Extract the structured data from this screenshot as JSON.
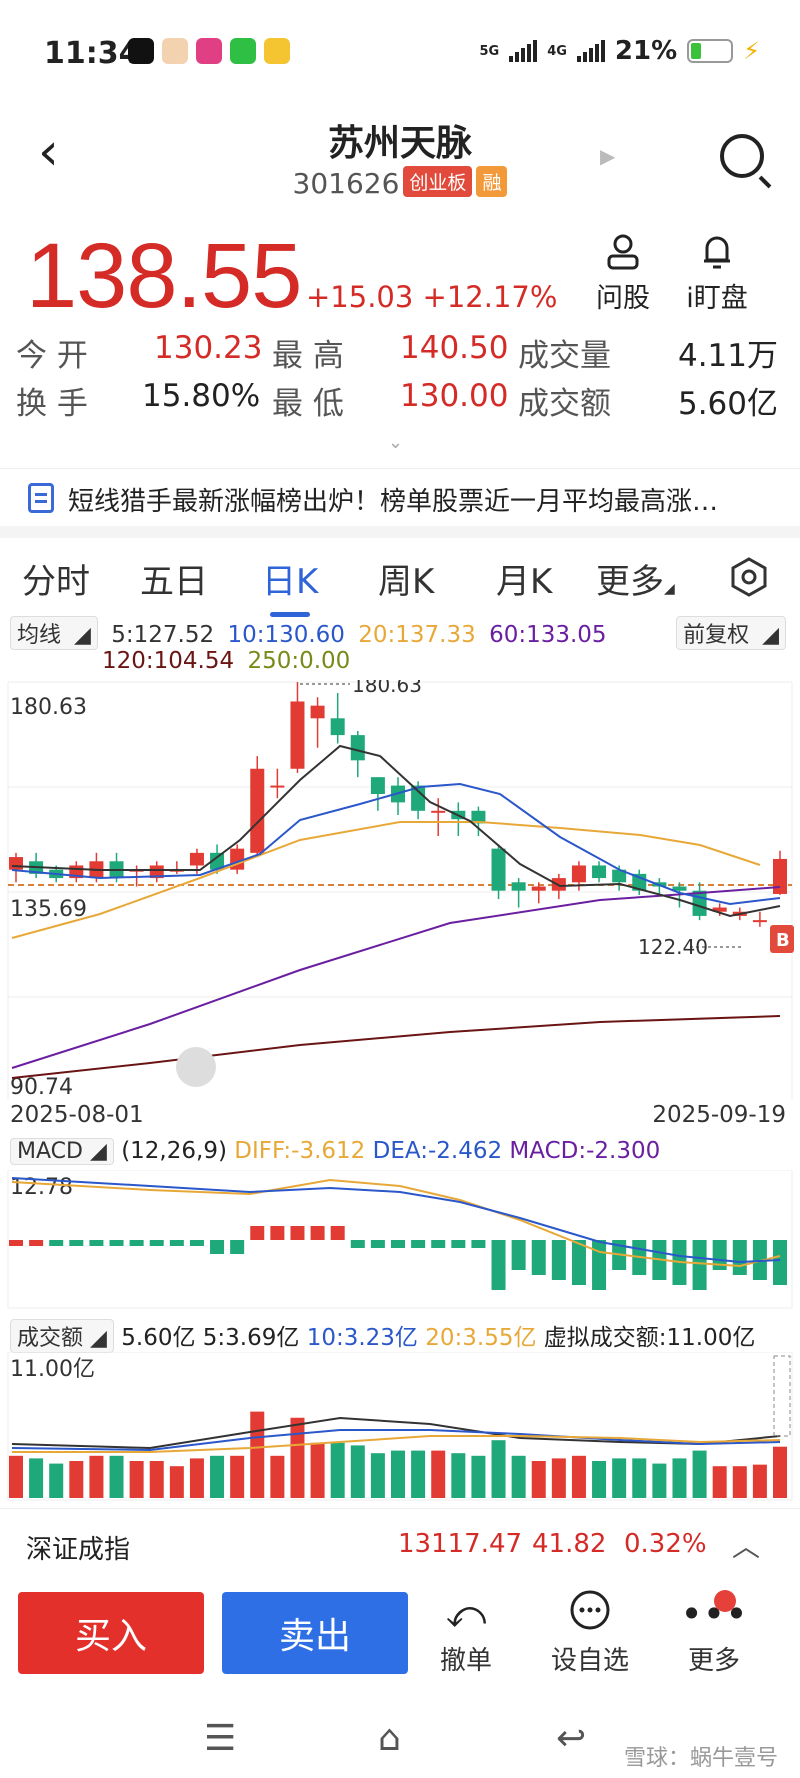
{
  "status_bar": {
    "time": "11:34",
    "signal_5g": "5G",
    "signal_4g": "4G",
    "battery": "21%"
  },
  "header": {
    "title": "苏州天脉",
    "code": "301626",
    "board_badge": "创业板",
    "margin_badge": "融"
  },
  "quote": {
    "price": "138.55",
    "change": "+15.03",
    "change_pct": "+12.17%",
    "actions": [
      {
        "label": "问股",
        "icon": "user-icon"
      },
      {
        "label": "i盯盘",
        "icon": "bell-icon"
      }
    ]
  },
  "stats": {
    "open_label": "今  开",
    "open": "130.23",
    "high_label": "最  高",
    "high": "140.50",
    "vol_label": "成交量",
    "vol": "4.11万",
    "turnover_label": "换  手",
    "turnover": "15.80%",
    "low_label": "最  低",
    "low": "130.00",
    "amount_label": "成交额",
    "amount": "5.60亿"
  },
  "news": {
    "text": "短线猎手最新涨幅榜出炉！榜单股票近一月平均最高涨…"
  },
  "tabs": [
    "分时",
    "五日",
    "日K",
    "周K",
    "月K",
    "更多"
  ],
  "active_tab": "日K",
  "ma_bar": {
    "chip": "均线",
    "ma5": "5:127.52",
    "ma10": "10:130.60",
    "ma20": "20:137.33",
    "ma60": "60:133.05",
    "ma120": "120:104.54",
    "ma250": "250:0.00",
    "adjust": "前复权"
  },
  "kline": {
    "max_label": "180.63",
    "high_label_peak": "180.63",
    "mid_label": "135.69",
    "low_label": "90.74",
    "min_mark": "122.40",
    "date_start": "2025-08-01",
    "date_end": "2025-09-19",
    "b_marker": "B"
  },
  "macd": {
    "chip": "MACD",
    "params": "(12,26,9)",
    "diff": "DIFF:-3.612",
    "dea": "DEA:-2.462",
    "macd": "MACD:-2.300",
    "top_label": "12.78"
  },
  "volume": {
    "chip": "成交额",
    "amount": "5.60亿",
    "ma5": "5:3.69亿",
    "ma10": "10:3.23亿",
    "ma20": "20:3.55亿",
    "virtual": "虚拟成交额:11.00亿",
    "top_label": "11.00亿"
  },
  "index_row": {
    "name": "深证成指",
    "value": "13117.47",
    "change": "41.82",
    "pct": "0.32%"
  },
  "action_bar": {
    "buy": "买入",
    "sell": "卖出",
    "cancel": "撤单",
    "watch": "设自选",
    "more": "更多"
  },
  "watermark": "雪球：蜗牛壹号",
  "colors": {
    "up": "#e23b33",
    "down": "#1fa87a",
    "accent": "#2f63d8",
    "ma5": "#333333",
    "ma10": "#2a57c9",
    "ma20": "#e8a838",
    "ma60": "#6a1fa0",
    "ma120": "#6b1414"
  },
  "chart_data": {
    "type": "candlestick",
    "date_range": [
      "2025-08-01",
      "2025-09-19"
    ],
    "ylim": [
      90.74,
      180.63
    ],
    "candles": [
      {
        "o": 136,
        "c": 139,
        "h": 140,
        "l": 133
      },
      {
        "o": 138,
        "c": 135,
        "h": 140,
        "l": 134
      },
      {
        "o": 136,
        "c": 134,
        "h": 137,
        "l": 133
      },
      {
        "o": 134,
        "c": 137,
        "h": 138,
        "l": 133
      },
      {
        "o": 134,
        "c": 138,
        "h": 140,
        "l": 133
      },
      {
        "o": 138,
        "c": 134,
        "h": 140,
        "l": 133
      },
      {
        "o": 136,
        "c": 136,
        "h": 137,
        "l": 132
      },
      {
        "o": 134,
        "c": 137,
        "h": 138,
        "l": 133
      },
      {
        "o": 136,
        "c": 136,
        "h": 138,
        "l": 135
      },
      {
        "o": 137,
        "c": 140,
        "h": 141,
        "l": 135
      },
      {
        "o": 140,
        "c": 136,
        "h": 142,
        "l": 135
      },
      {
        "o": 136,
        "c": 141,
        "h": 142,
        "l": 135
      },
      {
        "o": 140,
        "c": 160,
        "h": 163,
        "l": 139
      },
      {
        "o": 156,
        "c": 156,
        "h": 160,
        "l": 153
      },
      {
        "o": 160,
        "c": 176,
        "h": 180.63,
        "l": 159
      },
      {
        "o": 172,
        "c": 175,
        "h": 177,
        "l": 165
      },
      {
        "o": 172,
        "c": 168,
        "h": 178,
        "l": 166
      },
      {
        "o": 168,
        "c": 162,
        "h": 169,
        "l": 158
      },
      {
        "o": 158,
        "c": 154,
        "h": 158,
        "l": 150
      },
      {
        "o": 156,
        "c": 152,
        "h": 158,
        "l": 149
      },
      {
        "o": 156,
        "c": 150,
        "h": 157,
        "l": 148
      },
      {
        "o": 150,
        "c": 150,
        "h": 153,
        "l": 144
      },
      {
        "o": 150,
        "c": 148,
        "h": 152,
        "l": 144
      },
      {
        "o": 150,
        "c": 147,
        "h": 151,
        "l": 144
      },
      {
        "o": 141,
        "c": 131,
        "h": 142,
        "l": 129
      },
      {
        "o": 133,
        "c": 131,
        "h": 134,
        "l": 127
      },
      {
        "o": 131,
        "c": 132,
        "h": 133,
        "l": 128
      },
      {
        "o": 131,
        "c": 134,
        "h": 135,
        "l": 129
      },
      {
        "o": 133,
        "c": 137,
        "h": 138,
        "l": 131
      },
      {
        "o": 137,
        "c": 134,
        "h": 138,
        "l": 133
      },
      {
        "o": 136,
        "c": 133,
        "h": 137,
        "l": 131
      },
      {
        "o": 135,
        "c": 131,
        "h": 136,
        "l": 130
      },
      {
        "o": 133,
        "c": 132,
        "h": 134,
        "l": 130
      },
      {
        "o": 132,
        "c": 131,
        "h": 133,
        "l": 127
      },
      {
        "o": 131,
        "c": 125,
        "h": 133,
        "l": 124
      },
      {
        "o": 126,
        "c": 127,
        "h": 128,
        "l": 125
      },
      {
        "o": 125,
        "c": 126,
        "h": 127,
        "l": 124
      },
      {
        "o": 124,
        "c": 124,
        "h": 126,
        "l": 122.4
      },
      {
        "o": 130.23,
        "c": 138.55,
        "h": 140.5,
        "l": 130
      }
    ]
  }
}
